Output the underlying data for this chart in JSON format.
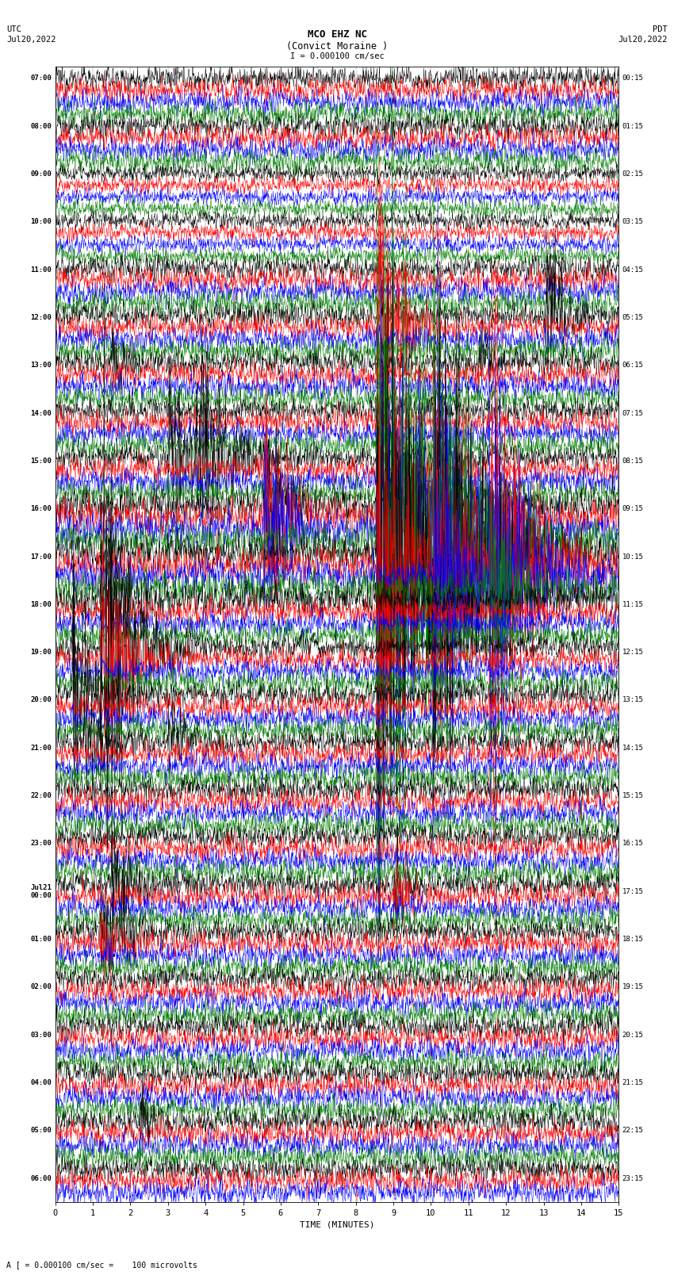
{
  "title_line1": "MCO EHZ NC",
  "title_line2": "(Convict Moraine )",
  "scale_label": "I = 0.000100 cm/sec",
  "left_date_label": "UTC\nJul20,2022",
  "right_date_label": "PDT\nJul20,2022",
  "bottom_label": "TIME (MINUTES)",
  "bottom_note": "A [ = 0.000100 cm/sec =    100 microvolts",
  "left_times": [
    "07:00",
    "",
    "",
    "",
    "08:00",
    "",
    "",
    "",
    "09:00",
    "",
    "",
    "",
    "10:00",
    "",
    "",
    "",
    "11:00",
    "",
    "",
    "",
    "12:00",
    "",
    "",
    "",
    "13:00",
    "",
    "",
    "",
    "14:00",
    "",
    "",
    "",
    "15:00",
    "",
    "",
    "",
    "16:00",
    "",
    "",
    "",
    "17:00",
    "",
    "",
    "",
    "18:00",
    "",
    "",
    "",
    "19:00",
    "",
    "",
    "",
    "20:00",
    "",
    "",
    "",
    "21:00",
    "",
    "",
    "",
    "22:00",
    "",
    "",
    "",
    "23:00",
    "",
    "",
    "",
    "Jul21\n00:00",
    "",
    "",
    "",
    "01:00",
    "",
    "",
    "",
    "02:00",
    "",
    "",
    "",
    "03:00",
    "",
    "",
    "",
    "04:00",
    "",
    "",
    "",
    "05:00",
    "",
    "",
    "",
    "06:00",
    "",
    ""
  ],
  "right_times": [
    "00:15",
    "",
    "",
    "",
    "01:15",
    "",
    "",
    "",
    "02:15",
    "",
    "",
    "",
    "03:15",
    "",
    "",
    "",
    "04:15",
    "",
    "",
    "",
    "05:15",
    "",
    "",
    "",
    "06:15",
    "",
    "",
    "",
    "07:15",
    "",
    "",
    "",
    "08:15",
    "",
    "",
    "",
    "09:15",
    "",
    "",
    "",
    "10:15",
    "",
    "",
    "",
    "11:15",
    "",
    "",
    "",
    "12:15",
    "",
    "",
    "",
    "13:15",
    "",
    "",
    "",
    "14:15",
    "",
    "",
    "",
    "15:15",
    "",
    "",
    "",
    "16:15",
    "",
    "",
    "",
    "17:15",
    "",
    "",
    "",
    "18:15",
    "",
    "",
    "",
    "19:15",
    "",
    "",
    "",
    "20:15",
    "",
    "",
    "",
    "21:15",
    "",
    "",
    "",
    "22:15",
    "",
    "",
    "",
    "23:15",
    "",
    ""
  ],
  "num_rows": 95,
  "row_colors": [
    "black",
    "red",
    "blue",
    "green"
  ],
  "xlim": [
    0,
    15
  ],
  "background_color": "white",
  "trace_linewidth": 0.35,
  "fig_width": 8.5,
  "fig_height": 16.13
}
